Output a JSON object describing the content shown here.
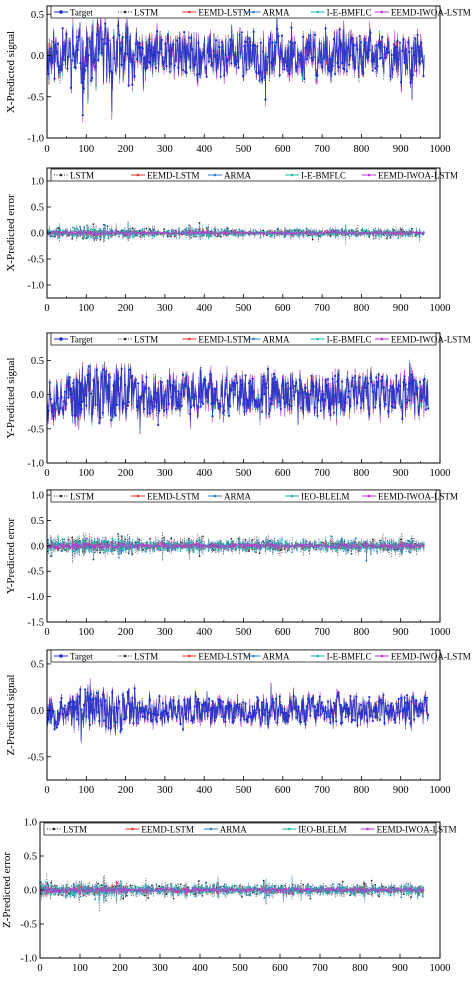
{
  "colors": {
    "target": "#1f2fd8",
    "lstm": "#2a2a2a",
    "eemd_lstm": "#e8302a",
    "arma": "#2b80c8",
    "bmflc": "#20b8a8",
    "iwoa": "#c033d8",
    "iwoa_line": "#3036c8"
  },
  "chart_data": [
    {
      "type": "line",
      "ylabel": "X-Predicted signal",
      "xlim": [
        0,
        1000
      ],
      "ylim": [
        -1.0,
        0.6
      ],
      "xticks": [
        "0",
        "100",
        "200",
        "300",
        "400",
        "500",
        "600",
        "700",
        "800",
        "900",
        "1000"
      ],
      "yticks": [
        "-1.0",
        "-0.5",
        "0.0",
        "0.5"
      ],
      "legend": [
        "Target",
        "LSTM",
        "EEMD-LSTM",
        "ARMA",
        "I-E-BMFLC",
        "EEMD-IWOA-LSTM"
      ],
      "legend_placement": "top",
      "n_points": 960,
      "amplitude": 0.32,
      "kind": "signal",
      "seed": 11
    },
    {
      "type": "line",
      "ylabel": "X-Predicted error",
      "xlim": [
        0,
        1000
      ],
      "ylim": [
        -1.25,
        1.25
      ],
      "xticks": [
        "0",
        "100",
        "200",
        "300",
        "400",
        "500",
        "600",
        "700",
        "800",
        "900",
        "1000"
      ],
      "yticks": [
        "-1.0",
        "-0.5",
        "0.0",
        "0.5",
        "1.0"
      ],
      "legend": [
        "LSTM",
        "EEMD-LSTM",
        "ARMA",
        "I-E-BMFLC",
        "EEMD-IWOA-LSTM"
      ],
      "legend_placement": "top",
      "n_points": 960,
      "amplitude": 0.12,
      "kind": "error",
      "seed": 23
    },
    {
      "type": "line",
      "ylabel": "Y-Predicted signal",
      "xlim": [
        0,
        1000
      ],
      "ylim": [
        -1.0,
        0.9
      ],
      "xticks": [
        "0",
        "100",
        "200",
        "300",
        "400",
        "500",
        "600",
        "700",
        "800",
        "900",
        "1000"
      ],
      "yticks": [
        "-1.0",
        "-0.5",
        "0.0",
        "0.5"
      ],
      "legend": [
        "Target",
        "LSTM",
        "EEMD-LSTM",
        "ARMA",
        "I-E-BMFLC",
        "EEMD-IWOA-LSTM"
      ],
      "legend_placement": "top",
      "n_points": 970,
      "amplitude": 0.36,
      "kind": "signal",
      "seed": 37
    },
    {
      "type": "line",
      "ylabel": "Y-Predicted error",
      "xlim": [
        0,
        1000
      ],
      "ylim": [
        -1.5,
        1.1
      ],
      "xticks": [
        "0",
        "100",
        "200",
        "300",
        "400",
        "500",
        "600",
        "700",
        "800",
        "900",
        "1000"
      ],
      "yticks": [
        "-1.5",
        "-1.0",
        "-0.5",
        "0.0",
        "0.5",
        "1.0"
      ],
      "legend": [
        "LSTM",
        "EEMD-LSTM",
        "ARMA",
        "IEO-BLELM",
        "EEMD-IWOA-LSTM"
      ],
      "legend_placement": "top",
      "n_points": 960,
      "amplitude": 0.18,
      "kind": "error",
      "seed": 41
    },
    {
      "type": "line",
      "ylabel": "Z-Predicted signal",
      "xlim": [
        0,
        1000
      ],
      "ylim": [
        -0.75,
        0.65
      ],
      "xticks": [
        "0",
        "100",
        "200",
        "300",
        "400",
        "500",
        "600",
        "700",
        "800",
        "900",
        "1000"
      ],
      "yticks": [
        "-0.5",
        "0.0",
        "0.5"
      ],
      "legend": [
        "Target",
        "LSTM",
        "EEMD-LSTM",
        "ARMA",
        "I-E-BMFLC",
        "EEMD-IWOA-LSTM"
      ],
      "legend_placement": "top",
      "n_points": 970,
      "amplitude": 0.18,
      "kind": "signal",
      "seed": 53
    },
    {
      "type": "line",
      "ylabel": "Z-Predicted error",
      "xlim": [
        0,
        1000
      ],
      "ylim": [
        -1.0,
        1.0
      ],
      "xticks": [
        "0",
        "100",
        "200",
        "300",
        "400",
        "500",
        "600",
        "700",
        "800",
        "900",
        "1000"
      ],
      "yticks": [
        "-1.0",
        "-0.5",
        "0.0",
        "0.5",
        "1.0"
      ],
      "legend": [
        "LSTM",
        "EEMD-LSTM",
        "ARMA",
        "IEO-BLELM",
        "EEMD-IWOA-LSTM"
      ],
      "legend_placement": "top",
      "n_points": 960,
      "amplitude": 0.12,
      "kind": "error",
      "seed": 67
    }
  ]
}
